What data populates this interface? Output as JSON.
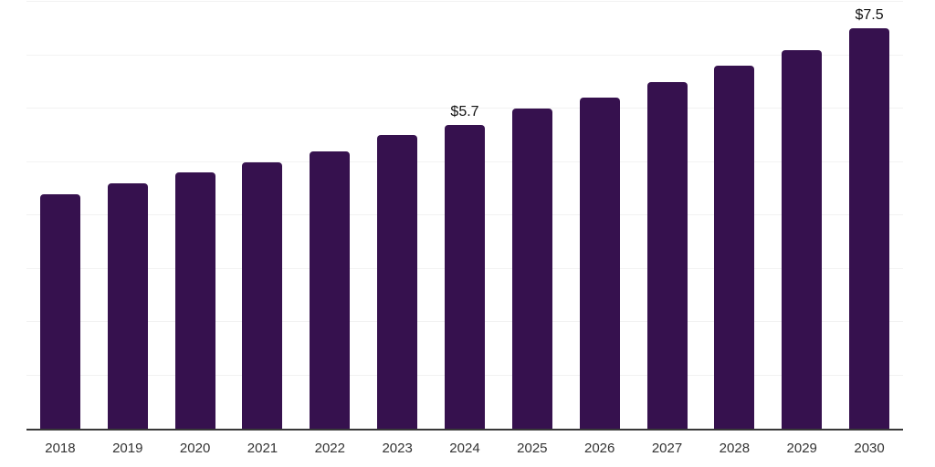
{
  "chart_data": {
    "type": "bar",
    "title": "",
    "xlabel": "",
    "ylabel": "",
    "categories": [
      "2018",
      "2019",
      "2020",
      "2021",
      "2022",
      "2023",
      "2024",
      "2025",
      "2026",
      "2027",
      "2028",
      "2029",
      "2030"
    ],
    "values": [
      4.4,
      4.6,
      4.8,
      5.0,
      5.2,
      5.5,
      5.7,
      6.0,
      6.2,
      6.5,
      6.8,
      7.1,
      7.5
    ],
    "value_labels": [
      "",
      "",
      "",
      "",
      "",
      "",
      "$5.7",
      "",
      "",
      "",
      "",
      "",
      "$7.5"
    ],
    "ylim": [
      0,
      8
    ],
    "gridline_step": 1,
    "grid_on": true,
    "y_tick_labels_shown": false,
    "legend_position": "none",
    "colors": {
      "bar": "#36114E",
      "gridline": "#f2f2f2",
      "axis_line": "#383838",
      "x_label_text": "#333333",
      "value_label_text": "#111111",
      "background": "#ffffff"
    }
  }
}
